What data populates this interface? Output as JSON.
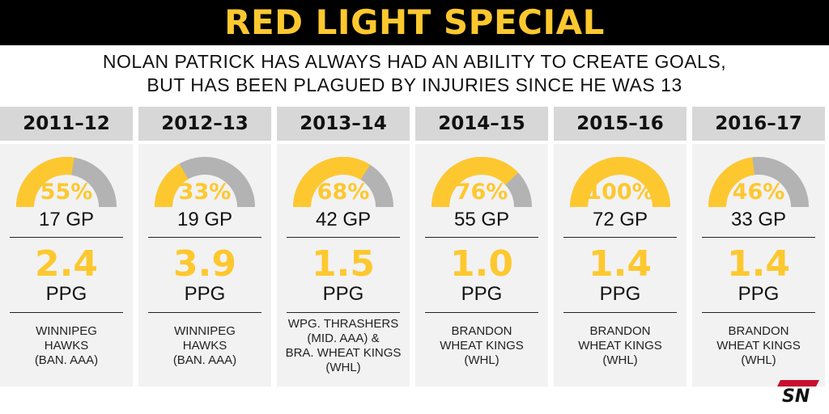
{
  "header": {
    "title": "RED LIGHT SPECIAL"
  },
  "subtitle": {
    "line1": "NOLAN PATRICK HAS ALWAYS HAD AN ABILITY TO CREATE GOALS,",
    "line2": "BUT HAS BEEN PLAGUED BY INJURIES SINCE HE WAS 13"
  },
  "colors": {
    "accent": "#FDC82F",
    "gauge_track": "#B3B3B3",
    "header_bg": "#000000",
    "season_bg": "#D7D7D7",
    "panel_bg": "#F2F2F2"
  },
  "chart_data": {
    "type": "table",
    "seasons": [
      {
        "season": "2011–12",
        "games_pct": 55,
        "games_pct_label": "55%",
        "gp": "17 GP",
        "ppg": "2.4",
        "ppg_label": "PPG",
        "team": [
          "WINNIPEG",
          "HAWKS",
          "(BAN. AAA)"
        ]
      },
      {
        "season": "2012–13",
        "games_pct": 33,
        "games_pct_label": "33%",
        "gp": "19 GP",
        "ppg": "3.9",
        "ppg_label": "PPG",
        "team": [
          "WINNIPEG",
          "HAWKS",
          "(BAN. AAA)"
        ]
      },
      {
        "season": "2013–14",
        "games_pct": 68,
        "games_pct_label": "68%",
        "gp": "42 GP",
        "ppg": "1.5",
        "ppg_label": "PPG",
        "team": [
          "WPG. THRASHERS",
          "(MID. AAA) &",
          "BRA. WHEAT KINGS",
          "(WHL)"
        ]
      },
      {
        "season": "2014–15",
        "games_pct": 76,
        "games_pct_label": "76%",
        "gp": "55 GP",
        "ppg": "1.0",
        "ppg_label": "PPG",
        "team": [
          "BRANDON",
          "WHEAT KINGS",
          "(WHL)"
        ]
      },
      {
        "season": "2015–16",
        "games_pct": 100,
        "games_pct_label": "100%",
        "gp": "72 GP",
        "ppg": "1.4",
        "ppg_label": "PPG",
        "team": [
          "BRANDON",
          "WHEAT KINGS",
          "(WHL)"
        ]
      },
      {
        "season": "2016–17",
        "games_pct": 46,
        "games_pct_label": "46%",
        "gp": "33 GP",
        "ppg": "1.4",
        "ppg_label": "PPG",
        "team": [
          "BRANDON",
          "WHEAT KINGS",
          "(WHL)"
        ]
      }
    ]
  },
  "logo": {
    "text": "SN"
  }
}
